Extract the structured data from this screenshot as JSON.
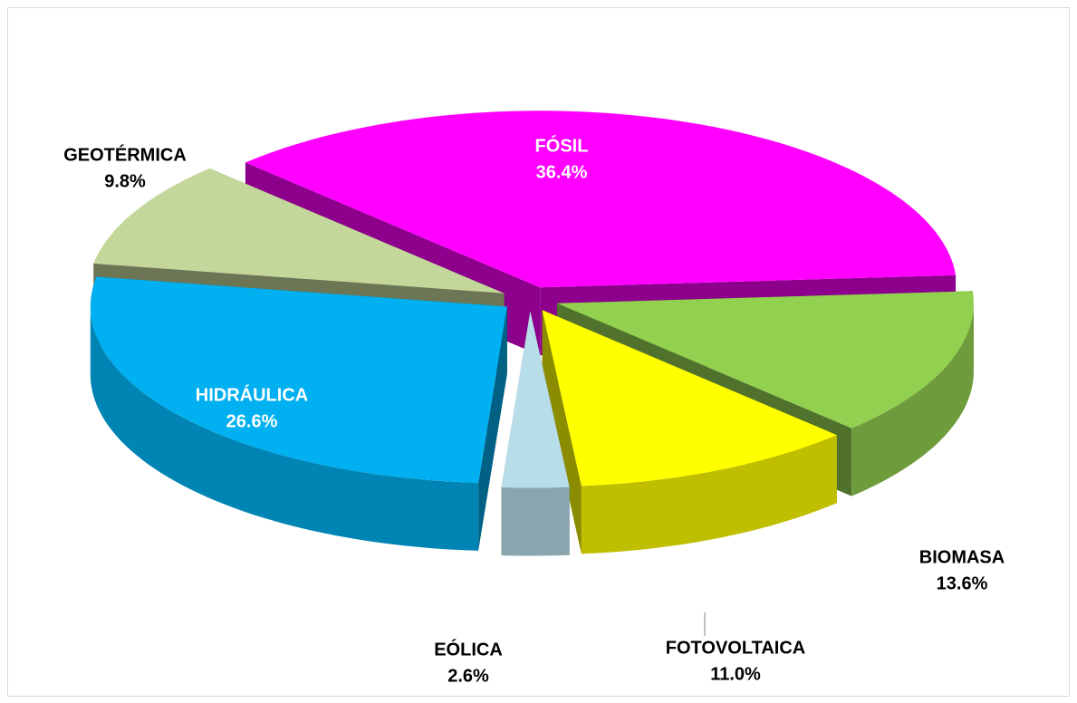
{
  "chart_data": {
    "type": "pie",
    "style": "3d-exploded",
    "categories": [
      "FÓSIL",
      "BIOMASA",
      "FOTOVOLTAICA",
      "EÓLICA",
      "HIDRÁULICA",
      "GEOTÉRMICA"
    ],
    "values": [
      36.4,
      13.6,
      11.0,
      2.6,
      26.6,
      9.8
    ],
    "value_labels": [
      "36.4%",
      "13.6%",
      "11.0%",
      "2.6%",
      "26.6%",
      "9.8%"
    ],
    "colors": [
      "#ff00ff",
      "#92d050",
      "#ffff00",
      "#b7dde8",
      "#00b0f0",
      "#c4d79b"
    ]
  }
}
